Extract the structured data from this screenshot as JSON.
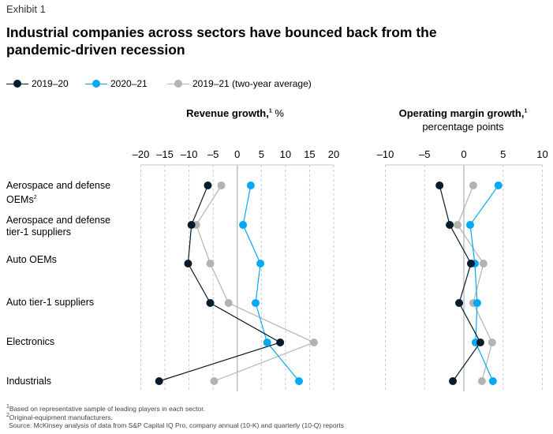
{
  "exhibit": "Exhibit 1",
  "title": "Industrial companies across sectors have bounced back from the pandemic-driven recession",
  "legend": [
    {
      "label": "2019–20",
      "color": "#051c2c"
    },
    {
      "label": "2020–21",
      "color": "#00a9f4"
    },
    {
      "label": "2019–21 (two-year average)",
      "color": "#b3b3b3"
    }
  ],
  "rows": [
    {
      "label": "Aerospace and defense OEMs",
      "sup": "2"
    },
    {
      "label": "Aerospace and defense tier-1 suppliers",
      "sup": ""
    },
    {
      "label": "Auto OEMs",
      "sup": ""
    },
    {
      "label": "Auto tier-1 suppliers",
      "sup": ""
    },
    {
      "label": "Electronics",
      "sup": ""
    },
    {
      "label": "Industrials",
      "sup": ""
    }
  ],
  "chart_data": [
    {
      "type": "scatter",
      "title": "Revenue growth,",
      "title_sup": "1",
      "title_unit": " %",
      "subtitle": "",
      "xlim": [
        -20,
        20
      ],
      "ticks": [
        -20,
        -15,
        -10,
        -5,
        0,
        5,
        10,
        15,
        20
      ],
      "tick_labels": [
        "–20",
        "–15",
        "–10",
        "–5",
        "0",
        "5",
        "10",
        "15",
        "20"
      ],
      "categories": [
        "Aerospace and defense OEMs",
        "Aerospace and defense tier-1 suppliers",
        "Auto OEMs",
        "Auto tier-1 suppliers",
        "Electronics",
        "Industrials"
      ],
      "series": [
        {
          "name": "2019–21 (two-year average)",
          "color": "#b3b3b3",
          "values": [
            -3.3,
            -8.5,
            -5.6,
            -1.8,
            15.9,
            -4.8
          ]
        },
        {
          "name": "2020–21",
          "color": "#00a9f4",
          "values": [
            2.8,
            1.2,
            4.8,
            3.8,
            6.2,
            12.8
          ]
        },
        {
          "name": "2019–20",
          "color": "#051c2c",
          "values": [
            -6.1,
            -9.5,
            -10.2,
            -5.6,
            8.9,
            -16.2
          ]
        }
      ]
    },
    {
      "type": "scatter",
      "title": "Operating margin growth,",
      "title_sup": "1",
      "title_unit": "",
      "subtitle": "percentage points",
      "xlim": [
        -10,
        10
      ],
      "ticks": [
        -10,
        -5,
        0,
        5,
        10
      ],
      "tick_labels": [
        "–10",
        "–5",
        "0",
        "5",
        "10"
      ],
      "categories": [
        "Aerospace and defense OEMs",
        "Aerospace and defense tier-1 suppliers",
        "Auto OEMs",
        "Auto tier-1 suppliers",
        "Electronics",
        "Industrials"
      ],
      "series": [
        {
          "name": "2019–21 (two-year average)",
          "color": "#b3b3b3",
          "values": [
            1.2,
            -0.8,
            2.5,
            1.2,
            3.6,
            2.3
          ]
        },
        {
          "name": "2020–21",
          "color": "#00a9f4",
          "values": [
            4.4,
            0.8,
            1.4,
            1.7,
            1.5,
            3.7
          ]
        },
        {
          "name": "2019–20",
          "color": "#051c2c",
          "values": [
            -3.1,
            -1.8,
            0.9,
            -0.6,
            2.1,
            -1.4
          ]
        }
      ]
    }
  ],
  "footnotes": [
    {
      "sup": "1",
      "text": "Based on representative sample of leading players in each sector."
    },
    {
      "sup": "2",
      "text": "Original-equipment manufacturers."
    },
    {
      "sup": "",
      "text": "Source: McKinsey analysis of data from S&P Capital IQ Pro, company annual (10-K) and quarterly (10-Q) reports"
    }
  ]
}
